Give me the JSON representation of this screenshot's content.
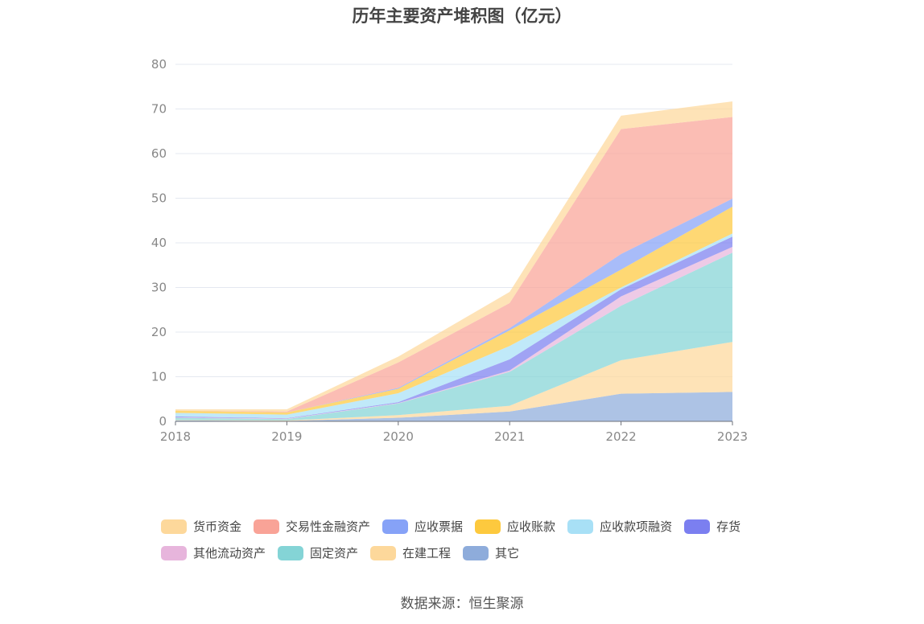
{
  "chart_data": {
    "type": "area",
    "stacked": true,
    "title": "历年主要资产堆积图（亿元）",
    "xlabel": "",
    "ylabel": "",
    "x": [
      "2018",
      "2019",
      "2020",
      "2021",
      "2022",
      "2023"
    ],
    "ylim": [
      0,
      80
    ],
    "yticks": [
      0,
      10,
      20,
      30,
      40,
      50,
      60,
      70,
      80
    ],
    "grid": true,
    "legend_position": "bottom",
    "series": [
      {
        "name": "其它",
        "color": "#8eacdb",
        "values": [
          0.2,
          0.1,
          0.8,
          2.2,
          6.2,
          6.6
        ]
      },
      {
        "name": "在建工程",
        "color": "#fdd89b",
        "values": [
          0.1,
          0.1,
          0.6,
          1.3,
          7.5,
          11.2
        ]
      },
      {
        "name": "固定资产",
        "color": "#84d4d6",
        "values": [
          0.5,
          0.3,
          2.6,
          7.6,
          12.2,
          20.0
        ]
      },
      {
        "name": "其他流动资产",
        "color": "#e7b5dc",
        "values": [
          0.1,
          0.1,
          0.1,
          0.3,
          2.1,
          1.3
        ]
      },
      {
        "name": "存货",
        "color": "#7b7ff0",
        "values": [
          0.2,
          0.1,
          0.2,
          2.5,
          1.6,
          2.3
        ]
      },
      {
        "name": "应收款项融资",
        "color": "#a8e0f6",
        "values": [
          0.8,
          0.8,
          2.0,
          3.0,
          0.4,
          0.7
        ]
      },
      {
        "name": "应收账款",
        "color": "#fdc93e",
        "values": [
          0.5,
          0.5,
          1.0,
          3.5,
          4.0,
          6.0
        ]
      },
      {
        "name": "应收票据",
        "color": "#86a2f7",
        "values": [
          0.0,
          0.0,
          0.2,
          0.5,
          3.5,
          1.8
        ]
      },
      {
        "name": "交易性金融资产",
        "color": "#f9a397",
        "values": [
          0.0,
          0.2,
          5.7,
          5.6,
          28.0,
          18.3
        ]
      },
      {
        "name": "货币资金",
        "color": "#fdd89b",
        "values": [
          0.3,
          0.5,
          1.3,
          2.5,
          3.0,
          3.5
        ]
      }
    ]
  },
  "source": "数据来源：恒生聚源"
}
